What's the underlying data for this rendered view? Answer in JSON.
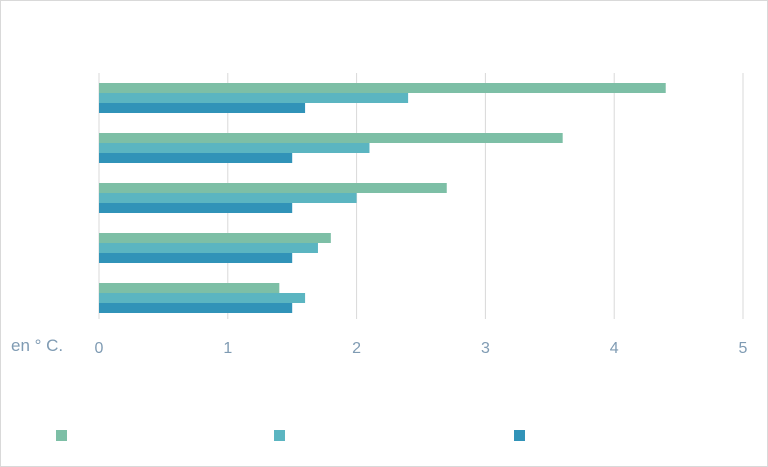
{
  "chart_data": {
    "type": "bar",
    "orientation": "horizontal",
    "unit_label": "en ° C.",
    "xlim": [
      0,
      5
    ],
    "x_ticks": [
      "0",
      "1",
      "2",
      "3",
      "4",
      "5"
    ],
    "grid": true,
    "legend_position": "bottom",
    "categories": [
      "",
      "",
      "",
      "",
      ""
    ],
    "series": [
      {
        "color": "#7dbfa6",
        "values": [
          4.4,
          3.6,
          2.7,
          1.8,
          1.4
        ]
      },
      {
        "color": "#5bb5c1",
        "values": [
          2.4,
          2.1,
          2.0,
          1.7,
          1.6
        ]
      },
      {
        "color": "#3193b8",
        "values": [
          1.6,
          1.5,
          1.5,
          1.5,
          1.5
        ]
      }
    ]
  }
}
